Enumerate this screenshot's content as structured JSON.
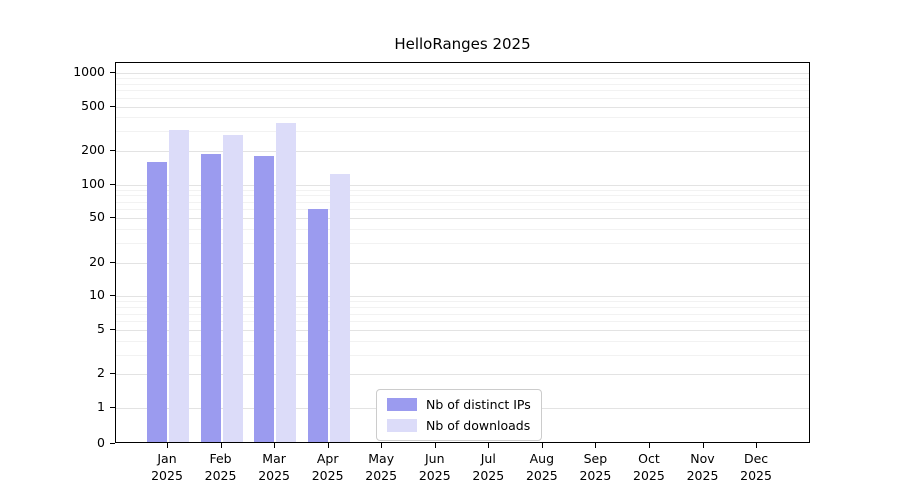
{
  "chart_data": {
    "type": "bar",
    "title": "HelloRanges 2025",
    "year_label": "2025",
    "categories": [
      "Jan",
      "Feb",
      "Mar",
      "Apr",
      "May",
      "Jun",
      "Jul",
      "Aug",
      "Sep",
      "Oct",
      "Nov",
      "Dec"
    ],
    "series": [
      {
        "key": "distinct-ips",
        "name": "Nb of distinct IPs",
        "color": "#9b9bef",
        "values": [
          160,
          190,
          180,
          60,
          0,
          0,
          0,
          0,
          0,
          0,
          0,
          0
        ]
      },
      {
        "key": "downloads",
        "name": "Nb of downloads",
        "color": "#dcdcf9",
        "values": [
          310,
          280,
          355,
          125,
          0,
          0,
          0,
          0,
          0,
          0,
          0,
          0
        ]
      }
    ],
    "yscale": "symlog",
    "yticks": [
      0,
      1,
      2,
      5,
      10,
      20,
      50,
      100,
      200,
      500,
      1000
    ],
    "ylim": [
      0,
      1300
    ],
    "grid": true,
    "legend_position": "bottom-center"
  }
}
